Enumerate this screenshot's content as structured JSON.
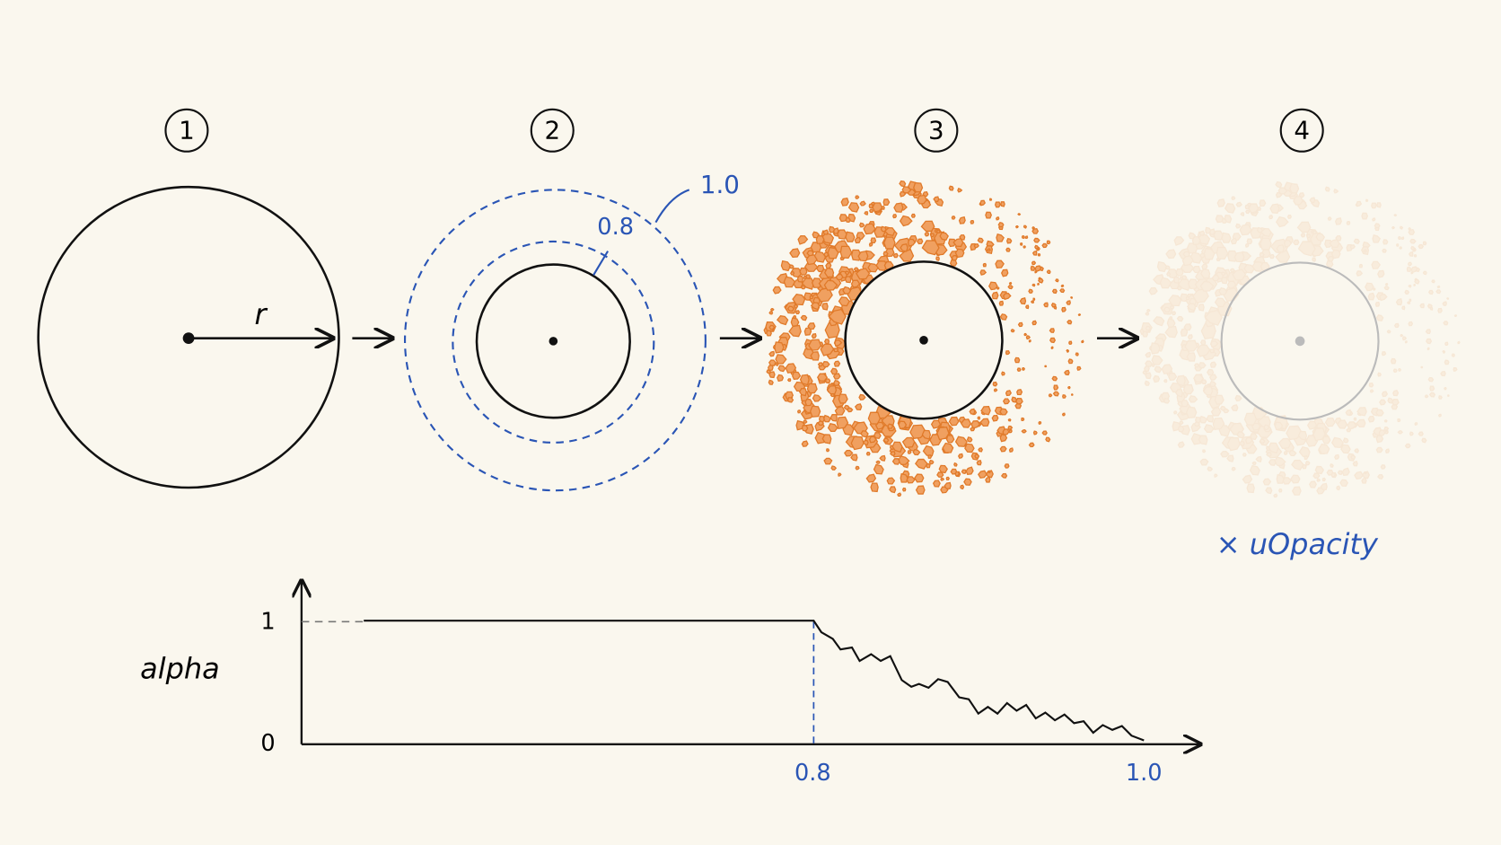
{
  "steps": [
    "1",
    "2",
    "3",
    "4"
  ],
  "step1": {
    "radius_label": "r"
  },
  "step2": {
    "outer_label": "1.0",
    "inner_label": "0.8"
  },
  "step4": {
    "multiplier_label": "× uOpacity"
  },
  "graph": {
    "y_label": "alpha",
    "y_ticks": [
      "1",
      "0"
    ],
    "x_ticks": [
      "0.8",
      "1.0"
    ]
  }
}
